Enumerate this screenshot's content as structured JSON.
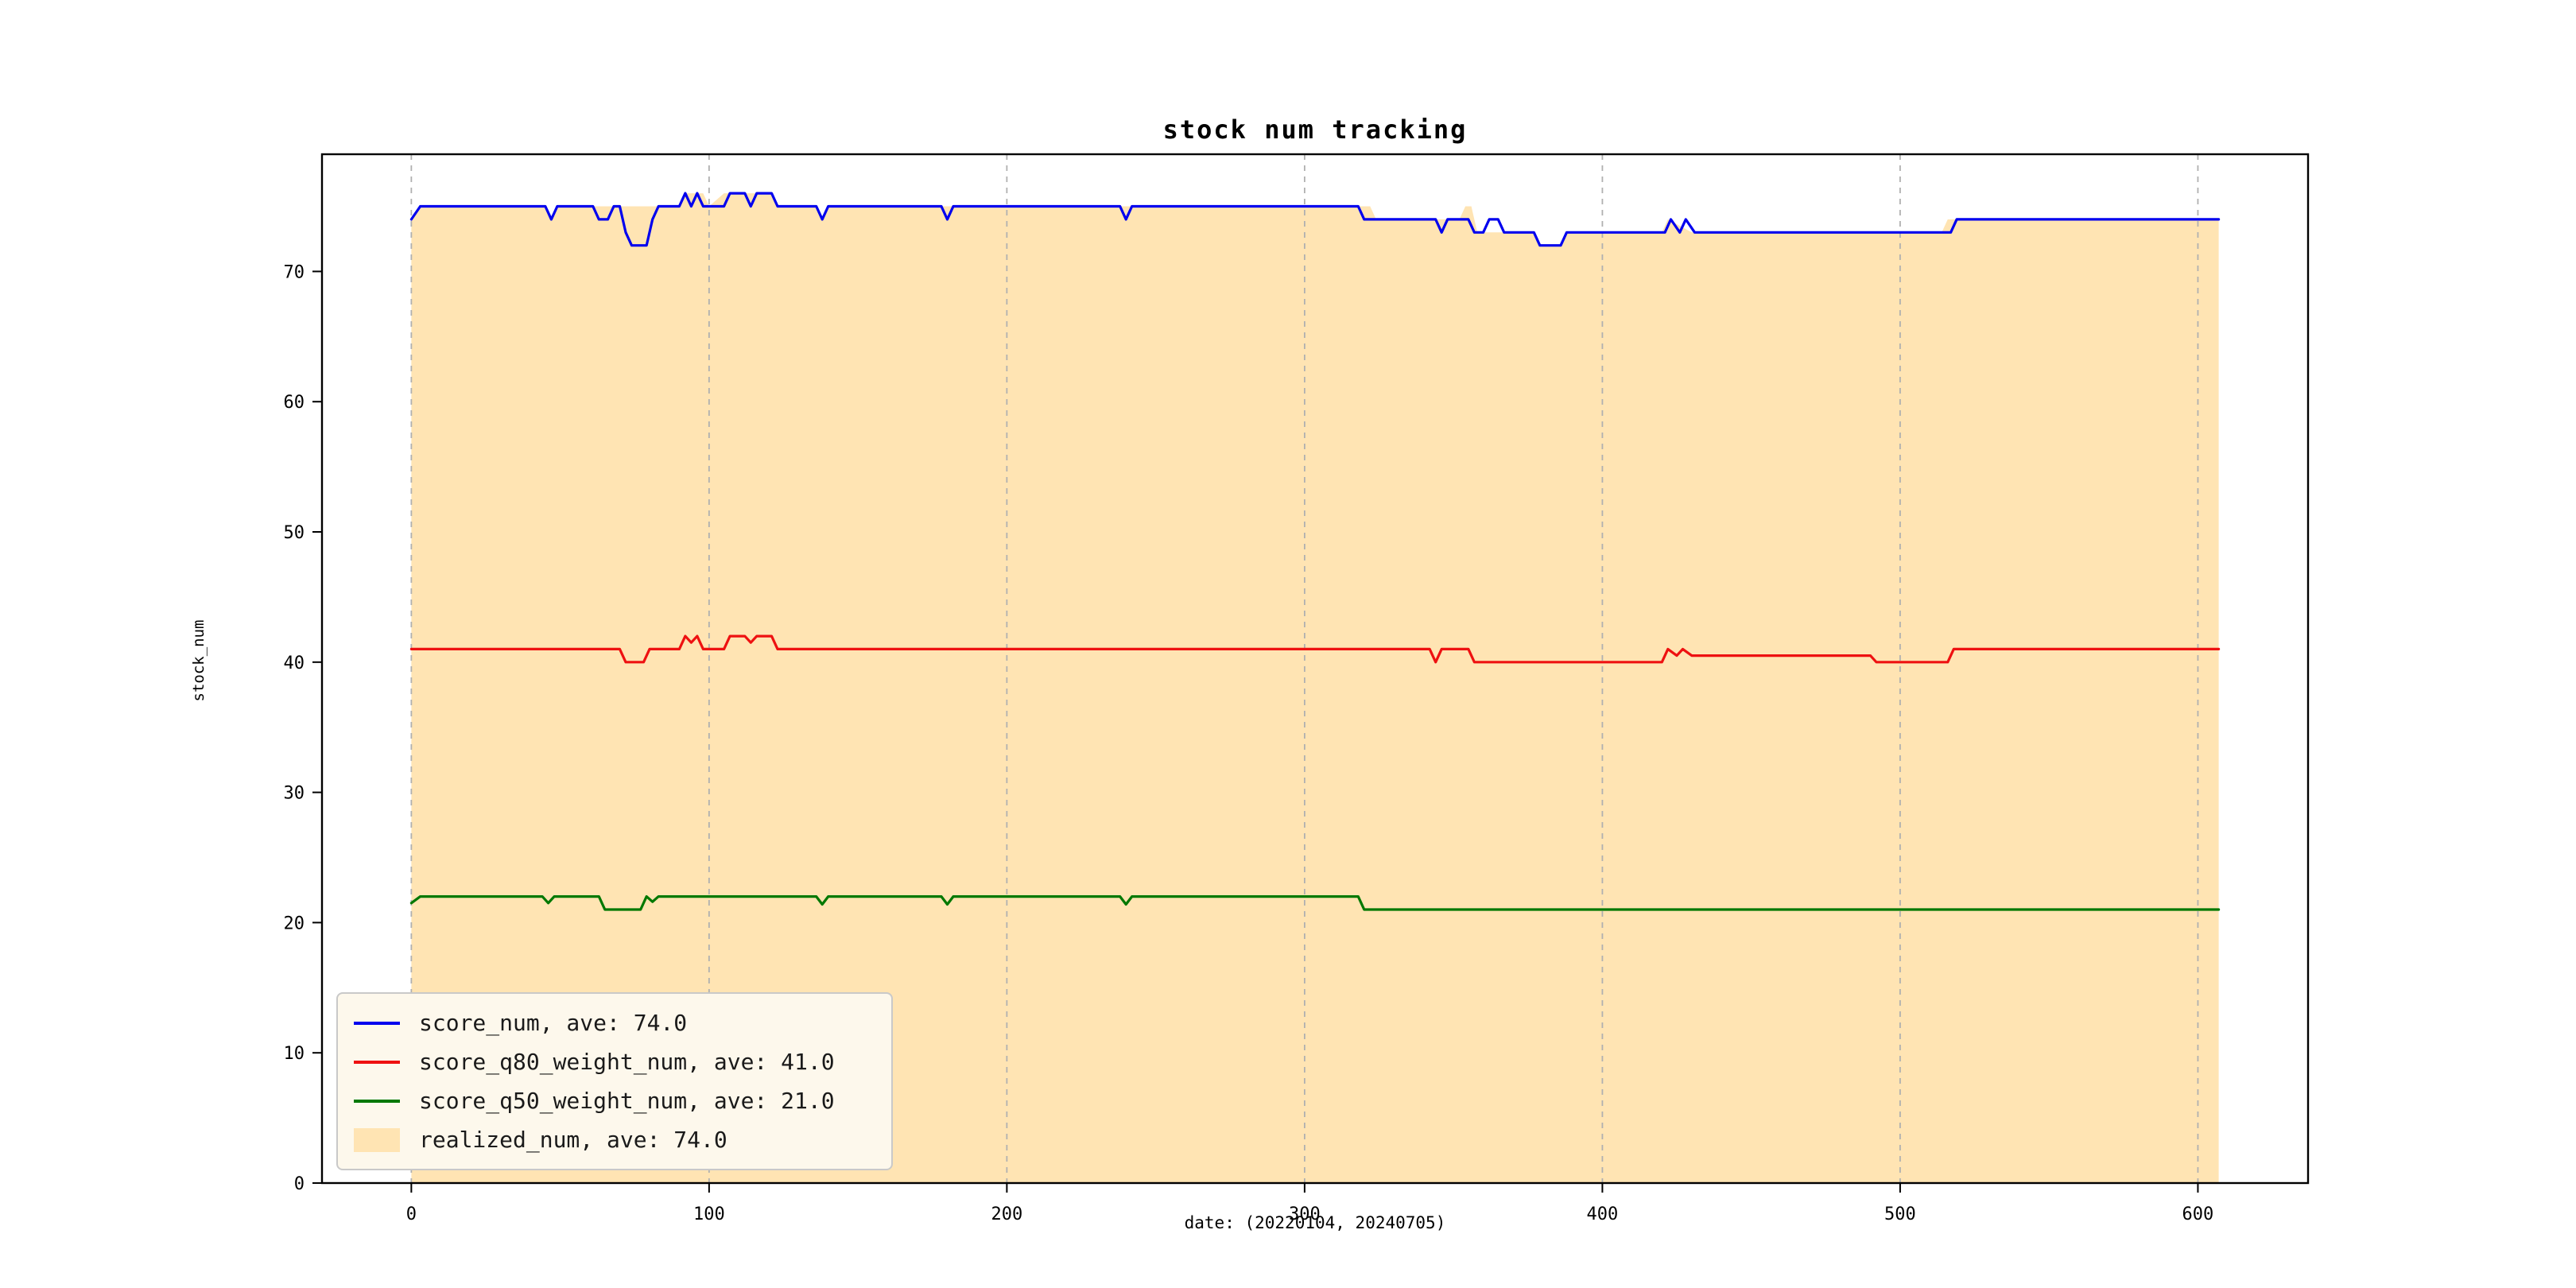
{
  "chart_data": {
    "type": "line",
    "title": "stock num tracking",
    "xlabel": "date: (20220104, 20240705)",
    "ylabel": "stock_num",
    "xlim": [
      -30,
      637
    ],
    "ylim": [
      0,
      79
    ],
    "xticks": [
      0,
      100,
      200,
      300,
      400,
      500,
      600
    ],
    "yticks": [
      0,
      10,
      20,
      30,
      40,
      50,
      60,
      70
    ],
    "grid": {
      "vertical": true,
      "horizontal": false,
      "style": "dashed",
      "color": "#b0b0b0"
    },
    "legend_position": "lower-left",
    "area": {
      "name": "realized_num, ave: 74.0",
      "color": "#ffe4b3",
      "baseline": 0,
      "points": [
        [
          0,
          74
        ],
        [
          3,
          75
        ],
        [
          45,
          75
        ],
        [
          47,
          74
        ],
        [
          49,
          75
        ],
        [
          90,
          75
        ],
        [
          92,
          76
        ],
        [
          98,
          76
        ],
        [
          100,
          75
        ],
        [
          105,
          76
        ],
        [
          121,
          76
        ],
        [
          123,
          75
        ],
        [
          136,
          75
        ],
        [
          138,
          74
        ],
        [
          140,
          75
        ],
        [
          318,
          75
        ],
        [
          322,
          75
        ],
        [
          324,
          74
        ],
        [
          344,
          74
        ],
        [
          352,
          74
        ],
        [
          354,
          75
        ],
        [
          356,
          75
        ],
        [
          358,
          73
        ],
        [
          377,
          73
        ],
        [
          379,
          72
        ],
        [
          386,
          72
        ],
        [
          388,
          73
        ],
        [
          420,
          73
        ],
        [
          422,
          74
        ],
        [
          430,
          73
        ],
        [
          514,
          73
        ],
        [
          516,
          74
        ],
        [
          607,
          74
        ]
      ]
    },
    "series": [
      {
        "name": "score_num, ave: 74.0",
        "color": "#0000ee",
        "points": [
          [
            0,
            74
          ],
          [
            3,
            75
          ],
          [
            45,
            75
          ],
          [
            47,
            74
          ],
          [
            49,
            75
          ],
          [
            61,
            75
          ],
          [
            63,
            74
          ],
          [
            66,
            74
          ],
          [
            68,
            75
          ],
          [
            70,
            75
          ],
          [
            72,
            73
          ],
          [
            74,
            72
          ],
          [
            79,
            72
          ],
          [
            81,
            74
          ],
          [
            83,
            75
          ],
          [
            90,
            75
          ],
          [
            92,
            76
          ],
          [
            94,
            75
          ],
          [
            96,
            76
          ],
          [
            98,
            75
          ],
          [
            105,
            75
          ],
          [
            107,
            76
          ],
          [
            112,
            76
          ],
          [
            114,
            75
          ],
          [
            116,
            76
          ],
          [
            121,
            76
          ],
          [
            123,
            75
          ],
          [
            136,
            75
          ],
          [
            138,
            74
          ],
          [
            140,
            75
          ],
          [
            178,
            75
          ],
          [
            180,
            74
          ],
          [
            182,
            75
          ],
          [
            238,
            75
          ],
          [
            240,
            74
          ],
          [
            242,
            75
          ],
          [
            318,
            75
          ],
          [
            320,
            74
          ],
          [
            344,
            74
          ],
          [
            346,
            73
          ],
          [
            348,
            74
          ],
          [
            355,
            74
          ],
          [
            357,
            73
          ],
          [
            360,
            73
          ],
          [
            362,
            74
          ],
          [
            365,
            74
          ],
          [
            367,
            73
          ],
          [
            377,
            73
          ],
          [
            379,
            72
          ],
          [
            386,
            72
          ],
          [
            388,
            73
          ],
          [
            421,
            73
          ],
          [
            423,
            74
          ],
          [
            426,
            73
          ],
          [
            428,
            74
          ],
          [
            431,
            73
          ],
          [
            495,
            73
          ],
          [
            517,
            73
          ],
          [
            519,
            74
          ],
          [
            607,
            74
          ]
        ]
      },
      {
        "name": "score_q80_weight_num, ave: 41.0",
        "color": "#ee1111",
        "points": [
          [
            0,
            41
          ],
          [
            70,
            41
          ],
          [
            72,
            40
          ],
          [
            78,
            40
          ],
          [
            80,
            41
          ],
          [
            90,
            41
          ],
          [
            92,
            42
          ],
          [
            94,
            41.5
          ],
          [
            96,
            42
          ],
          [
            98,
            41
          ],
          [
            105,
            41
          ],
          [
            107,
            42
          ],
          [
            112,
            42
          ],
          [
            114,
            41.5
          ],
          [
            116,
            42
          ],
          [
            121,
            42
          ],
          [
            123,
            41
          ],
          [
            342,
            41
          ],
          [
            344,
            40
          ],
          [
            346,
            41
          ],
          [
            355,
            41
          ],
          [
            357,
            40
          ],
          [
            420,
            40
          ],
          [
            422,
            41
          ],
          [
            425,
            40.5
          ],
          [
            427,
            41
          ],
          [
            430,
            40.5
          ],
          [
            434,
            40.5
          ],
          [
            490,
            40.5
          ],
          [
            492,
            40
          ],
          [
            516,
            40
          ],
          [
            518,
            41
          ],
          [
            607,
            41
          ]
        ]
      },
      {
        "name": "score_q50_weight_num, ave: 21.0",
        "color": "#007800",
        "points": [
          [
            0,
            21.5
          ],
          [
            3,
            22
          ],
          [
            44,
            22
          ],
          [
            46,
            21.5
          ],
          [
            48,
            22
          ],
          [
            63,
            22
          ],
          [
            65,
            21
          ],
          [
            77,
            21
          ],
          [
            79,
            22
          ],
          [
            81,
            21.6
          ],
          [
            83,
            22
          ],
          [
            136,
            22
          ],
          [
            138,
            21.4
          ],
          [
            140,
            22
          ],
          [
            178,
            22
          ],
          [
            180,
            21.4
          ],
          [
            182,
            22
          ],
          [
            238,
            22
          ],
          [
            240,
            21.4
          ],
          [
            242,
            22
          ],
          [
            318,
            22
          ],
          [
            320,
            21
          ],
          [
            607,
            21
          ]
        ]
      }
    ]
  }
}
